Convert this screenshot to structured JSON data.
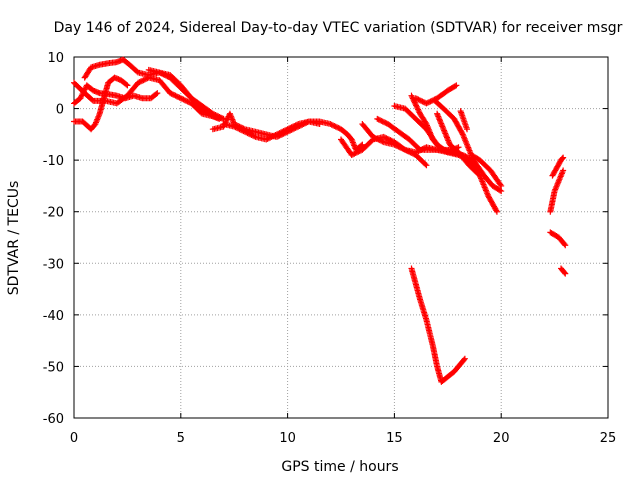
{
  "chart_data": {
    "type": "scatter",
    "title": "Day 146 of 2024, Sidereal Day-to-day VTEC variation (SDTVAR) for receiver msgr",
    "xlabel": "GPS time / hours",
    "ylabel": "SDTVAR / TECUs",
    "xlim": [
      0,
      25
    ],
    "ylim": [
      -60,
      10
    ],
    "xticks": [
      0,
      5,
      10,
      15,
      20,
      25
    ],
    "yticks": [
      10,
      0,
      -10,
      -20,
      -30,
      -40,
      -50,
      -60
    ],
    "grid": true,
    "marker": "+",
    "color": "#ff0000",
    "series": [
      {
        "name": "track-1",
        "points": [
          [
            0.0,
            5.0
          ],
          [
            0.5,
            3.0
          ],
          [
            0.9,
            1.5
          ],
          [
            1.5,
            1.5
          ],
          [
            2.0,
            1.0
          ],
          [
            2.5,
            2.5
          ],
          [
            3.0,
            5.0
          ],
          [
            3.5,
            6.0
          ],
          [
            4.0,
            5.5
          ],
          [
            4.5,
            3.0
          ],
          [
            5.0,
            2.0
          ],
          [
            5.5,
            1.0
          ],
          [
            6.0,
            -1.0
          ],
          [
            6.5,
            -1.5
          ],
          [
            7.0,
            -2.0
          ]
        ]
      },
      {
        "name": "track-2",
        "points": [
          [
            0.5,
            6.0
          ],
          [
            0.8,
            8.0
          ],
          [
            1.2,
            8.5
          ],
          [
            1.6,
            8.8
          ],
          [
            2.0,
            9.0
          ],
          [
            2.3,
            9.5
          ],
          [
            2.6,
            8.5
          ],
          [
            3.0,
            7.0
          ],
          [
            3.5,
            6.5
          ],
          [
            4.0,
            7.0
          ],
          [
            4.5,
            6.5
          ],
          [
            5.0,
            4.5
          ],
          [
            5.5,
            2.0
          ],
          [
            6.0,
            0.0
          ],
          [
            6.5,
            -1.5
          ],
          [
            6.8,
            -2.0
          ]
        ]
      },
      {
        "name": "track-3",
        "points": [
          [
            0.0,
            1.0
          ],
          [
            0.3,
            2.0
          ],
          [
            0.6,
            4.5
          ],
          [
            0.9,
            3.5
          ],
          [
            1.2,
            3.0
          ],
          [
            1.6,
            2.8
          ],
          [
            2.0,
            2.5
          ],
          [
            2.4,
            2.0
          ],
          [
            2.8,
            2.5
          ],
          [
            3.2,
            2.0
          ],
          [
            3.6,
            2.0
          ],
          [
            3.9,
            3.0
          ]
        ]
      },
      {
        "name": "track-4",
        "points": [
          [
            0.0,
            -2.5
          ],
          [
            0.4,
            -2.5
          ],
          [
            0.8,
            -4.0
          ],
          [
            1.0,
            -3.0
          ],
          [
            1.2,
            -1.0
          ],
          [
            1.4,
            2.0
          ],
          [
            1.6,
            5.0
          ],
          [
            1.9,
            6.0
          ],
          [
            2.2,
            5.5
          ],
          [
            2.5,
            4.5
          ]
        ]
      },
      {
        "name": "track-5",
        "points": [
          [
            3.5,
            7.5
          ],
          [
            4.0,
            7.0
          ],
          [
            4.5,
            6.0
          ],
          [
            5.0,
            4.0
          ],
          [
            5.5,
            2.0
          ],
          [
            6.0,
            0.5
          ],
          [
            6.5,
            -1.0
          ],
          [
            7.0,
            -2.0
          ]
        ]
      },
      {
        "name": "track-6",
        "points": [
          [
            6.5,
            -4.0
          ],
          [
            7.0,
            -3.5
          ],
          [
            7.3,
            -1.0
          ],
          [
            7.5,
            -3.0
          ],
          [
            8.0,
            -4.0
          ],
          [
            8.5,
            -4.5
          ],
          [
            9.0,
            -5.0
          ],
          [
            9.5,
            -5.5
          ],
          [
            10.0,
            -4.5
          ],
          [
            10.5,
            -3.5
          ],
          [
            11.0,
            -2.5
          ],
          [
            11.5,
            -2.5
          ],
          [
            12.0,
            -3.0
          ],
          [
            12.5,
            -4.0
          ],
          [
            12.8,
            -5.0
          ],
          [
            13.0,
            -6.0
          ],
          [
            13.2,
            -8.0
          ],
          [
            13.5,
            -7.0
          ]
        ]
      },
      {
        "name": "track-7",
        "points": [
          [
            7.0,
            -3.0
          ],
          [
            7.5,
            -3.5
          ],
          [
            8.0,
            -4.5
          ],
          [
            8.5,
            -5.5
          ],
          [
            9.0,
            -6.0
          ],
          [
            9.5,
            -5.0
          ],
          [
            10.0,
            -4.0
          ],
          [
            10.5,
            -3.0
          ],
          [
            11.0,
            -2.5
          ],
          [
            11.5,
            -3.0
          ]
        ]
      },
      {
        "name": "track-8",
        "points": [
          [
            12.5,
            -6.0
          ],
          [
            13.0,
            -9.0
          ],
          [
            13.5,
            -8.0
          ],
          [
            14.0,
            -6.0
          ],
          [
            14.5,
            -5.5
          ],
          [
            15.0,
            -6.5
          ],
          [
            15.5,
            -8.0
          ],
          [
            16.0,
            -9.0
          ],
          [
            16.5,
            -11.0
          ]
        ]
      },
      {
        "name": "track-9",
        "points": [
          [
            13.5,
            -3.0
          ],
          [
            14.0,
            -5.5
          ],
          [
            14.5,
            -6.5
          ],
          [
            15.0,
            -7.0
          ],
          [
            15.5,
            -8.0
          ],
          [
            16.0,
            -8.5
          ],
          [
            16.5,
            -7.5
          ],
          [
            17.0,
            -8.0
          ],
          [
            17.5,
            -8.5
          ],
          [
            18.0,
            -7.5
          ]
        ]
      },
      {
        "name": "track-10",
        "points": [
          [
            14.2,
            -2.0
          ],
          [
            14.7,
            -3.0
          ],
          [
            15.2,
            -4.5
          ],
          [
            15.7,
            -6.0
          ],
          [
            16.2,
            -8.0
          ],
          [
            16.7,
            -8.0
          ],
          [
            17.2,
            -8.0
          ],
          [
            17.7,
            -8.5
          ],
          [
            18.2,
            -9.0
          ],
          [
            18.7,
            -10.0
          ],
          [
            19.2,
            -13.0
          ],
          [
            19.6,
            -15.0
          ],
          [
            20.0,
            -16.0
          ]
        ]
      },
      {
        "name": "track-11",
        "points": [
          [
            15.0,
            0.5
          ],
          [
            15.5,
            0.0
          ],
          [
            16.0,
            -2.0
          ],
          [
            16.5,
            -4.0
          ],
          [
            17.0,
            -7.0
          ],
          [
            17.5,
            -8.5
          ],
          [
            18.0,
            -9.0
          ],
          [
            18.5,
            -10.0
          ],
          [
            19.0,
            -12.0
          ]
        ]
      },
      {
        "name": "track-12",
        "points": [
          [
            15.8,
            2.5
          ],
          [
            16.2,
            -1.0
          ],
          [
            16.5,
            -3.0
          ],
          [
            16.8,
            -6.0
          ],
          [
            17.2,
            -8.0
          ],
          [
            17.6,
            -8.0
          ],
          [
            18.0,
            -8.5
          ],
          [
            18.5,
            -11.0
          ],
          [
            19.0,
            -13.0
          ],
          [
            19.4,
            -17.0
          ],
          [
            19.8,
            -20.0
          ]
        ]
      },
      {
        "name": "track-13",
        "points": [
          [
            16.9,
            1.5
          ],
          [
            17.3,
            0.0
          ],
          [
            17.8,
            -2.0
          ],
          [
            18.2,
            -5.0
          ],
          [
            18.6,
            -9.0
          ],
          [
            19.0,
            -10.0
          ],
          [
            19.5,
            -12.0
          ],
          [
            20.0,
            -15.0
          ]
        ]
      },
      {
        "name": "track-14",
        "points": [
          [
            16.0,
            2.0
          ],
          [
            16.5,
            1.0
          ],
          [
            17.0,
            2.0
          ],
          [
            17.5,
            3.5
          ],
          [
            17.9,
            4.5
          ]
        ]
      },
      {
        "name": "track-15",
        "points": [
          [
            17.0,
            -1.0
          ],
          [
            17.3,
            -4.0
          ],
          [
            17.6,
            -7.0
          ],
          [
            18.0,
            -8.5
          ],
          [
            18.4,
            -10.0
          ],
          [
            18.8,
            -11.0
          ]
        ]
      },
      {
        "name": "track-16",
        "points": [
          [
            18.1,
            -0.5
          ],
          [
            18.4,
            -4.0
          ]
        ]
      },
      {
        "name": "track-17",
        "points": [
          [
            15.8,
            -31.0
          ],
          [
            16.2,
            -37.0
          ],
          [
            16.5,
            -41.0
          ],
          [
            16.8,
            -46.0
          ],
          [
            17.0,
            -50.0
          ],
          [
            17.2,
            -53.0
          ],
          [
            17.5,
            -52.0
          ],
          [
            17.8,
            -51.0
          ],
          [
            18.1,
            -49.5
          ],
          [
            18.3,
            -48.5
          ]
        ]
      },
      {
        "name": "track-18",
        "points": [
          [
            22.4,
            -13.0
          ],
          [
            22.8,
            -10.0
          ],
          [
            22.9,
            -9.5
          ]
        ]
      },
      {
        "name": "track-19",
        "points": [
          [
            22.3,
            -20.0
          ],
          [
            22.5,
            -16.0
          ],
          [
            22.9,
            -12.0
          ]
        ]
      },
      {
        "name": "track-20",
        "points": [
          [
            22.3,
            -24.0
          ],
          [
            22.7,
            -25.0
          ],
          [
            23.0,
            -26.5
          ]
        ]
      },
      {
        "name": "track-21",
        "points": [
          [
            22.8,
            -31.0
          ],
          [
            23.0,
            -32.0
          ]
        ]
      }
    ]
  }
}
